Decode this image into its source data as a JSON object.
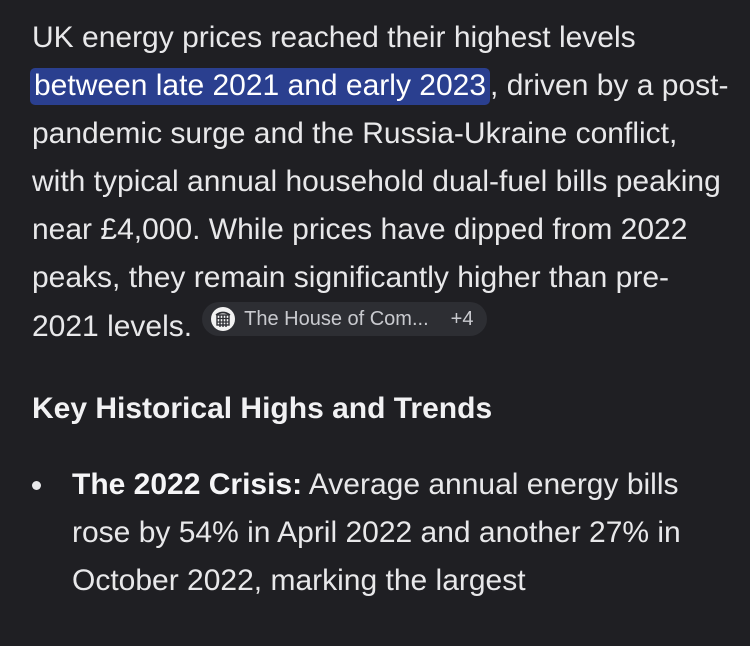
{
  "answer": {
    "para_before_highlight": "UK energy prices reached their highest levels ",
    "highlight": "between late 2021 and early 2023",
    "para_after_highlight": ", driven by a post-pandemic surge and the Russia-Ukraine conflict, with typical annual household dual-fuel bills peaking near £4,000. While prices have dipped from 2022 peaks, they remain significantly higher than pre-2021 levels.",
    "source_chip": {
      "icon": "parliament-portcullis-icon",
      "label": "The House of Com...",
      "more": "+4"
    }
  },
  "section": {
    "heading": "Key Historical Highs and Trends"
  },
  "list": {
    "items": [
      {
        "term": "The 2022 Crisis:",
        "text": " Average annual energy bills rose by 54% in April 2022 and another 27% in October 2022, marking the largest"
      }
    ]
  },
  "colors": {
    "background": "#1f1f23",
    "text": "#e8e8ea",
    "highlight": "#2a3f8f",
    "chip_background": "#2d2e33"
  }
}
